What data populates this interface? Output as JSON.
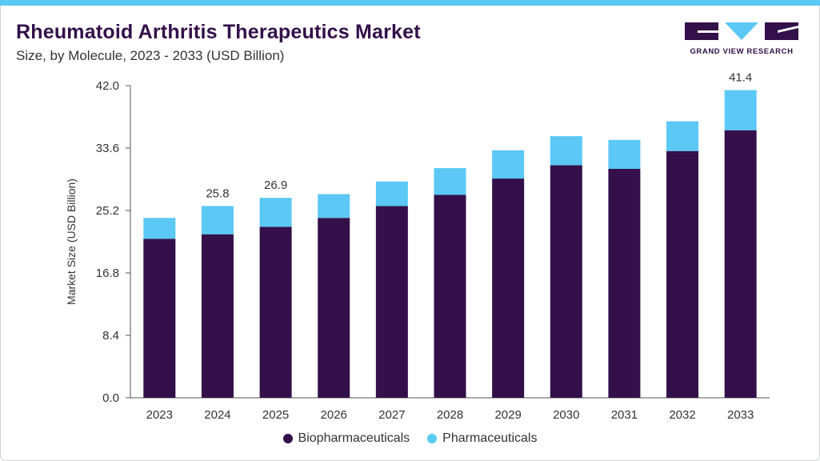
{
  "header": {
    "title": "Rheumatoid Arthritis Therapeutics Market",
    "subtitle": "Size, by Molecule, 2023 - 2033 (USD Billion)"
  },
  "logo": {
    "text": "GRAND VIEW RESEARCH",
    "color": "#33104a",
    "accent": "#5bc8f5"
  },
  "colors": {
    "biopharmaceuticals": "#33104a",
    "pharmaceuticals": "#5bc8f5",
    "top_bar": "#5bc8f5"
  },
  "chart_data": {
    "type": "bar",
    "stacked": true,
    "title": "Rheumatoid Arthritis Therapeutics Market",
    "subtitle": "Size, by Molecule, 2023 - 2033 (USD Billion)",
    "xlabel": "",
    "ylabel": "Market Size (USD Billion)",
    "ylim": [
      0,
      42
    ],
    "yticks": [
      "0.0",
      "8.4",
      "16.8",
      "25.2",
      "33.6",
      "42.0"
    ],
    "ytick_values": [
      0,
      8.4,
      16.8,
      25.2,
      33.6,
      42.0
    ],
    "grid": false,
    "legend_position": "bottom",
    "categories": [
      "2023",
      "2024",
      "2025",
      "2026",
      "2027",
      "2028",
      "2029",
      "2030",
      "2031",
      "2032",
      "2033"
    ],
    "series": [
      {
        "name": "Biopharmaceuticals",
        "values": [
          21.4,
          22.0,
          23.0,
          24.2,
          25.8,
          27.3,
          29.5,
          31.3,
          30.8,
          33.2,
          36.0
        ]
      },
      {
        "name": "Pharmaceuticals",
        "values": [
          2.8,
          3.8,
          3.9,
          3.2,
          3.3,
          3.6,
          3.8,
          3.9,
          3.9,
          4.0,
          5.4
        ]
      }
    ],
    "data_labels": [
      {
        "category": "2024",
        "text": "25.8"
      },
      {
        "category": "2025",
        "text": "26.9"
      },
      {
        "category": "2033",
        "text": "41.4"
      }
    ]
  }
}
